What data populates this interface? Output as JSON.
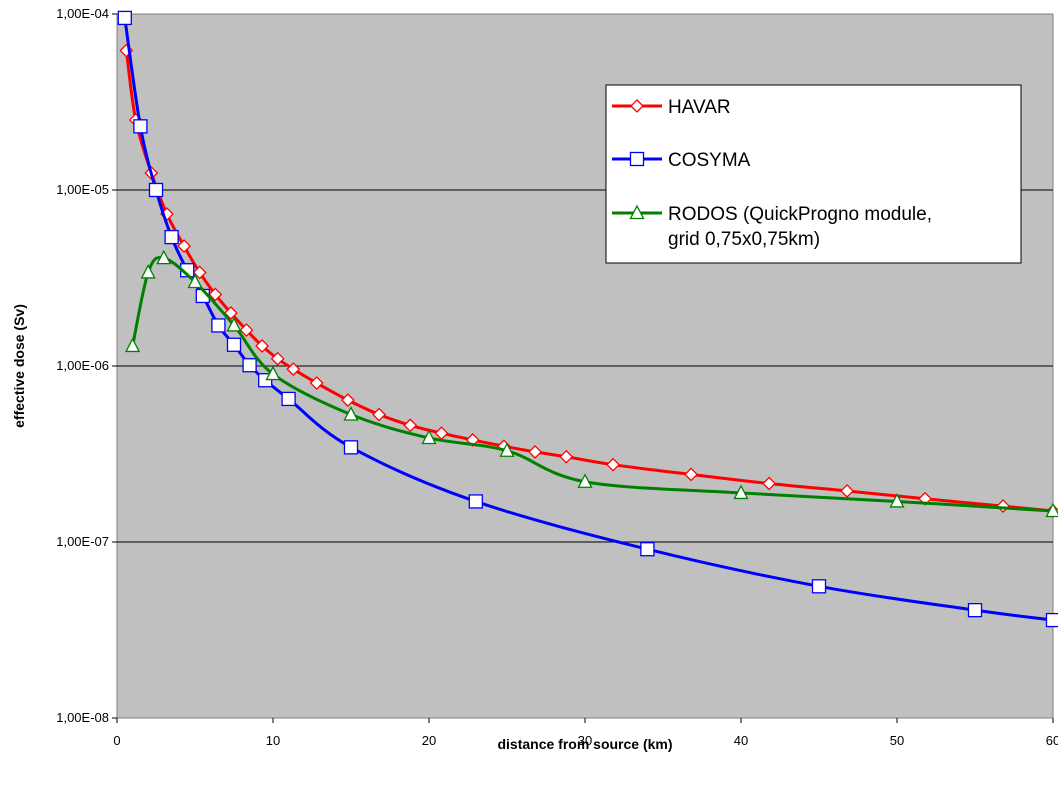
{
  "chart_data": {
    "type": "line",
    "xlabel": "distance from source (km)",
    "ylabel": "effective dose (Sv)",
    "xlim": [
      0,
      60
    ],
    "ylim": [
      1e-08,
      0.0001
    ],
    "y_scale": "log",
    "grid": "horizontal",
    "plot_background": "#c0c0c0",
    "legend_position": "top-right",
    "x_ticks": [
      "0",
      "10",
      "20",
      "30",
      "40",
      "50",
      "60"
    ],
    "x_tick_values": [
      0,
      10,
      20,
      30,
      40,
      50,
      60
    ],
    "y_ticks": [
      "1,00E-08",
      "1,00E-07",
      "1,00E-06",
      "1,00E-05",
      "1,00E-04"
    ],
    "y_tick_values": [
      1e-08,
      1e-07,
      1e-06,
      1e-05,
      0.0001
    ],
    "series": [
      {
        "name": "HAVAR",
        "color": "#ff0000",
        "marker": "diamond",
        "x": [
          0.6,
          1.2,
          2.2,
          3.2,
          4.3,
          5.3,
          6.3,
          7.3,
          8.3,
          9.3,
          10.3,
          11.3,
          12.8,
          14.8,
          16.8,
          18.8,
          20.8,
          22.8,
          24.8,
          26.8,
          28.8,
          31.8,
          36.8,
          41.8,
          46.8,
          51.8,
          56.8,
          60
        ],
        "y": [
          6.2e-05,
          2.5e-05,
          1.25e-05,
          7.3e-06,
          4.8e-06,
          3.4e-06,
          2.55e-06,
          2e-06,
          1.6e-06,
          1.3e-06,
          1.1e-06,
          9.6e-07,
          8e-07,
          6.4e-07,
          5.3e-07,
          4.6e-07,
          4.15e-07,
          3.8e-07,
          3.5e-07,
          3.25e-07,
          3.05e-07,
          2.75e-07,
          2.42e-07,
          2.15e-07,
          1.95e-07,
          1.76e-07,
          1.6e-07,
          1.5e-07
        ]
      },
      {
        "name": "COSYMA",
        "color": "#0000ff",
        "marker": "square",
        "x": [
          0.5,
          1.5,
          2.5,
          3.5,
          4.5,
          5.5,
          6.5,
          7.5,
          8.5,
          9.5,
          11,
          15,
          23,
          34,
          45,
          55,
          60
        ],
        "y": [
          9.5e-05,
          2.3e-05,
          1e-05,
          5.4e-06,
          3.5e-06,
          2.5e-06,
          1.7e-06,
          1.32e-06,
          1.01e-06,
          8.3e-07,
          6.5e-07,
          3.45e-07,
          1.7e-07,
          9.1e-08,
          5.6e-08,
          4.1e-08,
          3.6e-08
        ]
      },
      {
        "name": "RODOS (QuickProgno module, grid 0,75x0,75km)",
        "color": "#008000",
        "marker": "triangle",
        "x": [
          1,
          2,
          3,
          5,
          7.5,
          10,
          15,
          20,
          25,
          30,
          40,
          50,
          60
        ],
        "y": [
          1.3e-06,
          3.4e-06,
          4.1e-06,
          3e-06,
          1.7e-06,
          9e-07,
          5.3e-07,
          3.9e-07,
          3.3e-07,
          2.2e-07,
          1.9e-07,
          1.7e-07,
          1.5e-07
        ]
      }
    ],
    "legend_lines": [
      [
        "HAVAR"
      ],
      [
        "COSYMA"
      ],
      [
        "RODOS (QuickProgno module,",
        "grid 0,75x0,75km)"
      ]
    ]
  }
}
